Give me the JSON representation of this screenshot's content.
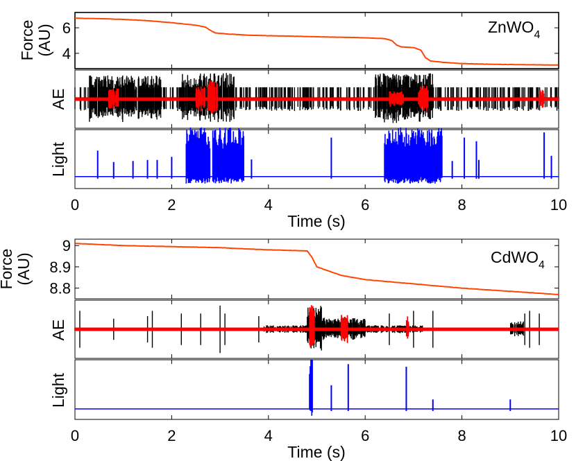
{
  "chart_data": [
    {
      "type": "line",
      "title": "",
      "material": "ZnWO",
      "material_subscript": "4",
      "xlabel": "Time (s)",
      "xlim": [
        0,
        10
      ],
      "xticks": [
        0,
        2,
        4,
        6,
        8,
        10
      ],
      "xtick_labels": [
        "0",
        "2",
        "4",
        "6",
        "8",
        "10"
      ],
      "panels": {
        "force": {
          "ylabel_line1": "Force",
          "ylabel_line2": "(AU)",
          "ylim": [
            2.8,
            7.2
          ],
          "yticks": [
            4,
            6
          ],
          "ytick_labels": [
            "4",
            "6"
          ],
          "color": "#ff4500",
          "x": [
            0,
            0.5,
            1.0,
            1.5,
            2.0,
            2.5,
            2.7,
            2.8,
            2.9,
            3.2,
            3.6,
            4.0,
            5.0,
            6.0,
            6.4,
            6.55,
            6.65,
            6.75,
            7.0,
            7.15,
            7.25,
            7.35,
            7.6,
            8.0,
            8.5,
            9.0,
            9.5,
            10.0
          ],
          "y": [
            6.75,
            6.72,
            6.66,
            6.56,
            6.4,
            6.2,
            6.05,
            5.8,
            5.6,
            5.5,
            5.42,
            5.38,
            5.3,
            5.22,
            5.15,
            5.0,
            4.65,
            4.5,
            4.45,
            4.25,
            3.65,
            3.4,
            3.3,
            3.2,
            3.15,
            3.12,
            3.1,
            3.08
          ]
        },
        "ae": {
          "ylabel": "AE",
          "series": [
            {
              "name": "raw",
              "color": "#000000",
              "seed": 7,
              "base_amp": 0.45,
              "noise": 0.04,
              "bursts": [
                [
                  0.3,
                  1.8,
                  0.9
                ],
                [
                  2.2,
                  3.3,
                  1.0
                ],
                [
                  6.2,
                  7.4,
                  1.0
                ]
              ]
            },
            {
              "name": "filtered",
              "color": "#ff0000",
              "seed": 11,
              "base_amp": 0.04,
              "noise": 0.06,
              "bursts": [
                [
                  0.7,
                  0.9,
                  0.4
                ],
                [
                  2.5,
                  2.7,
                  0.5
                ],
                [
                  2.75,
                  2.95,
                  0.7
                ],
                [
                  6.5,
                  6.8,
                  0.3
                ],
                [
                  7.1,
                  7.3,
                  0.5
                ],
                [
                  9.6,
                  9.7,
                  0.4
                ]
              ]
            }
          ]
        },
        "light": {
          "ylabel": "Light",
          "color": "#0000ff",
          "baseline": 0.15,
          "bursts": [
            [
              2.3,
              2.8,
              0.95
            ],
            [
              2.85,
              3.5,
              0.95
            ],
            [
              6.4,
              7.6,
              0.95
            ]
          ],
          "spikes": [
            [
              0.47,
              0.5
            ],
            [
              0.8,
              0.28
            ],
            [
              1.2,
              0.3
            ],
            [
              1.5,
              0.32
            ],
            [
              1.7,
              0.32
            ],
            [
              2.0,
              0.38
            ],
            [
              2.5,
              0.4
            ],
            [
              3.3,
              0.4
            ],
            [
              3.65,
              0.33
            ],
            [
              5.3,
              0.75
            ],
            [
              7.8,
              0.3
            ],
            [
              8.05,
              0.75
            ],
            [
              8.3,
              0.68
            ],
            [
              9.7,
              0.85
            ],
            [
              9.85,
              0.4
            ],
            [
              8.35,
              0.32
            ]
          ]
        }
      }
    },
    {
      "type": "line",
      "title": "",
      "material": "CdWO",
      "material_subscript": "4",
      "xlabel": "Time (s)",
      "xlim": [
        0,
        10
      ],
      "xticks": [
        0,
        2,
        4,
        6,
        8,
        10
      ],
      "xtick_labels": [
        "0",
        "2",
        "4",
        "6",
        "8",
        "10"
      ],
      "panels": {
        "force": {
          "ylabel_line1": "Force",
          "ylabel_line2": "(AU)",
          "ylim": [
            8.75,
            9.03
          ],
          "yticks": [
            8.8,
            8.9,
            9
          ],
          "ytick_labels": [
            "8.8",
            "8.9",
            "9"
          ],
          "color": "#ff4500",
          "x": [
            0,
            1.0,
            2.0,
            3.0,
            4.0,
            4.8,
            4.85,
            4.9,
            5.0,
            5.5,
            6.0,
            7.0,
            8.0,
            9.0,
            10.0
          ],
          "y": [
            9.01,
            9.0,
            8.995,
            8.99,
            8.98,
            8.975,
            8.96,
            8.945,
            8.9,
            8.86,
            8.84,
            8.82,
            8.8,
            8.785,
            8.77
          ]
        },
        "ae": {
          "ylabel": "AE",
          "series": [
            {
              "name": "raw",
              "color": "#000000",
              "seed": 23,
              "base_amp": 0.06,
              "noise": 0.03,
              "bursts": [
                [
                  3.9,
                  4.8,
                  0.15
                ],
                [
                  4.8,
                  5.1,
                  0.9
                ],
                [
                  5.1,
                  6.0,
                  0.45
                ],
                [
                  6.0,
                  7.2,
                  0.15
                ],
                [
                  9.0,
                  9.3,
                  0.3
                ]
              ],
              "spikes": [
                [
                  0.1,
                  0.7
                ],
                [
                  0.8,
                  0.4
                ],
                [
                  1.5,
                  0.5
                ],
                [
                  1.6,
                  0.7
                ],
                [
                  2.2,
                  0.6
                ],
                [
                  2.6,
                  0.6
                ],
                [
                  3.0,
                  0.9
                ],
                [
                  3.1,
                  0.6
                ],
                [
                  3.8,
                  0.5
                ],
                [
                  6.5,
                  0.6
                ],
                [
                  7.0,
                  0.7
                ],
                [
                  7.4,
                  0.7
                ],
                [
                  9.3,
                  0.6
                ],
                [
                  9.4,
                  0.7
                ],
                [
                  9.6,
                  0.6
                ]
              ]
            },
            {
              "name": "filtered",
              "color": "#ff0000",
              "seed": 29,
              "base_amp": 0.03,
              "noise": 0.05,
              "bursts": [
                [
                  4.85,
                  4.95,
                  1.0
                ],
                [
                  5.5,
                  5.65,
                  0.55
                ],
                [
                  6.85,
                  6.9,
                  0.5
                ]
              ]
            }
          ]
        },
        "light": {
          "ylabel": "Light",
          "color": "#0000ff",
          "baseline": 0.12,
          "bursts": [
            [
              4.85,
              4.92,
              1.0
            ]
          ],
          "spikes": [
            [
              4.88,
              0.93
            ],
            [
              5.3,
              0.45
            ],
            [
              5.65,
              0.85
            ],
            [
              6.85,
              0.8
            ],
            [
              7.4,
              0.18
            ],
            [
              9.0,
              0.18
            ]
          ]
        }
      }
    }
  ]
}
